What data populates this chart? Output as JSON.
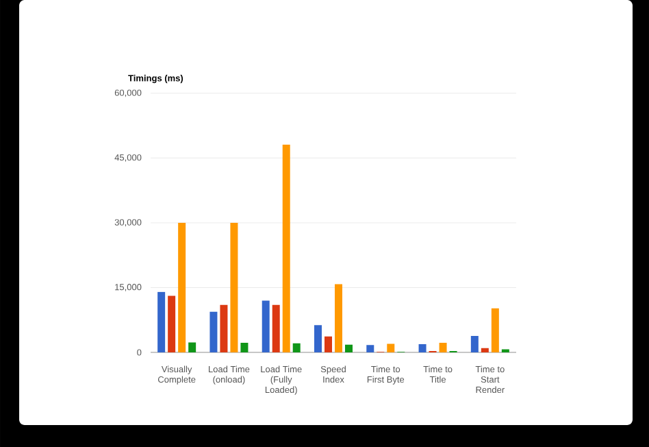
{
  "chart_data": {
    "type": "bar",
    "title": "Timings (ms)",
    "categories": [
      "Visually Complete",
      "Load Time (onload)",
      "Load Time (Fully Loaded)",
      "Speed Index",
      "Time to First Byte",
      "Time to Title",
      "Time to Start Render"
    ],
    "series": [
      {
        "color": "#3366cc",
        "values": [
          14000,
          9400,
          12000,
          6300,
          1700,
          1900,
          3800
        ]
      },
      {
        "color": "#dc3912",
        "values": [
          13100,
          11000,
          11000,
          3700,
          100,
          300,
          1000
        ]
      },
      {
        "color": "#ff9900",
        "values": [
          30000,
          30000,
          48100,
          15800,
          2000,
          2200,
          10200
        ]
      },
      {
        "color": "#109618",
        "values": [
          2300,
          2200,
          2100,
          1800,
          100,
          300,
          700
        ]
      }
    ],
    "ylim": [
      0,
      60000
    ],
    "yticks": [
      {
        "value": 0,
        "label": "0"
      },
      {
        "value": 15000,
        "label": "15,000"
      },
      {
        "value": 30000,
        "label": "30,000"
      },
      {
        "value": 45000,
        "label": "45,000"
      },
      {
        "value": 60000,
        "label": "60,000"
      }
    ],
    "grid": "y"
  }
}
